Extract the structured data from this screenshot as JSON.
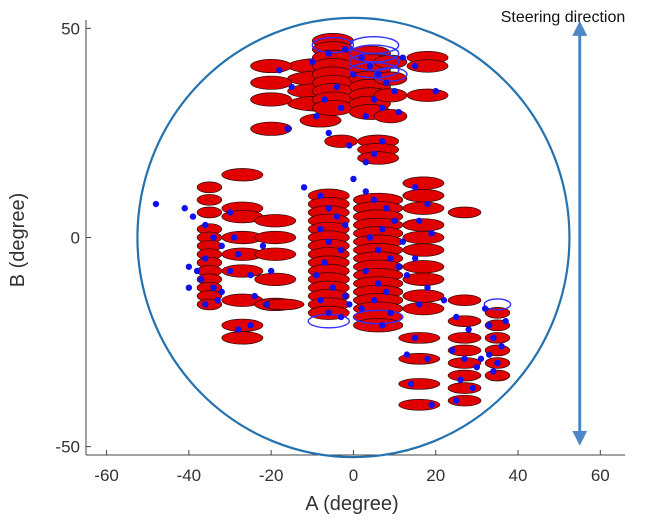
{
  "chart_data": {
    "type": "scatter",
    "title": "",
    "xlabel": "A (degree)",
    "ylabel": "B (degree)",
    "xlim": [
      -65,
      66
    ],
    "ylim": [
      -52,
      52
    ],
    "x_ticks": [
      -60,
      -40,
      -20,
      0,
      20,
      40,
      60
    ],
    "y_ticks": [
      50,
      0,
      -50
    ],
    "x_tick_labels": [
      "-60",
      "-40",
      "-20",
      "0",
      "20",
      "40",
      "60"
    ],
    "y_tick_labels": [
      "50",
      "0",
      "-50"
    ],
    "grid": false,
    "boundary_circle": {
      "center": [
        0,
        0
      ],
      "radius": 52.5
    },
    "annotation": {
      "text": "Steering direction",
      "arrow_x": 55,
      "arrow_y_range": [
        -48,
        50
      ]
    },
    "colors": {
      "fill": "#e00000",
      "outline": "#2a0a0a",
      "point": "#1010ee",
      "open_ellipse": "#3030ff",
      "boundary": "#2472b0",
      "arrow": "#4f86c6"
    },
    "filled_ellipses": [
      [
        -8,
        41,
        8,
        1.8
      ],
      [
        -8,
        38,
        8,
        1.8
      ],
      [
        -8,
        35,
        8,
        1.8
      ],
      [
        -8,
        32,
        8,
        1.8
      ],
      [
        -20,
        41,
        5,
        1.6
      ],
      [
        -20,
        37,
        5,
        1.6
      ],
      [
        -20,
        33,
        5,
        1.6
      ],
      [
        -20,
        26,
        5,
        1.6
      ],
      [
        -8,
        28,
        5,
        1.6
      ],
      [
        -5,
        47,
        5,
        1.8
      ],
      [
        -5,
        45,
        5,
        1.8
      ],
      [
        -5,
        43,
        5,
        1.8
      ],
      [
        -5,
        41,
        5,
        1.8
      ],
      [
        -5,
        39,
        5,
        1.8
      ],
      [
        -5,
        37,
        5,
        1.8
      ],
      [
        -5,
        35,
        5,
        1.8
      ],
      [
        -5,
        33,
        5,
        1.8
      ],
      [
        -5,
        31,
        5,
        1.8
      ],
      [
        4,
        44,
        5,
        1.8
      ],
      [
        4,
        42,
        5,
        1.8
      ],
      [
        4,
        40,
        5,
        1.8
      ],
      [
        4,
        38,
        5,
        1.8
      ],
      [
        4,
        36,
        5,
        1.8
      ],
      [
        4,
        34,
        5,
        1.8
      ],
      [
        4,
        32,
        5,
        1.8
      ],
      [
        4,
        30,
        5,
        1.8
      ],
      [
        9,
        42,
        4,
        1.6
      ],
      [
        9,
        38,
        4,
        1.6
      ],
      [
        9,
        34,
        4,
        1.6
      ],
      [
        9,
        29,
        4,
        1.6
      ],
      [
        18,
        43,
        5,
        1.5
      ],
      [
        18,
        41,
        5,
        1.5
      ],
      [
        18,
        34,
        5,
        1.5
      ],
      [
        -3,
        23,
        4,
        1.5
      ],
      [
        6,
        23,
        5,
        1.5
      ],
      [
        6,
        21,
        5,
        1.5
      ],
      [
        6,
        19,
        5,
        1.5
      ],
      [
        -35,
        12,
        3,
        1.3
      ],
      [
        -35,
        9,
        3,
        1.3
      ],
      [
        -35,
        6,
        3,
        1.3
      ],
      [
        -35,
        2,
        3,
        1.3
      ],
      [
        -35,
        0,
        3,
        1.3
      ],
      [
        -35,
        -2,
        3,
        1.3
      ],
      [
        -35,
        -4,
        3,
        1.3
      ],
      [
        -35,
        -6,
        3,
        1.3
      ],
      [
        -35,
        -8,
        3,
        1.3
      ],
      [
        -35,
        -10,
        3,
        1.3
      ],
      [
        -35,
        -12,
        3,
        1.3
      ],
      [
        -35,
        -14,
        3,
        1.3
      ],
      [
        -35,
        -16,
        3,
        1.3
      ],
      [
        -27,
        15,
        5,
        1.5
      ],
      [
        -27,
        7,
        5,
        1.5
      ],
      [
        -27,
        5,
        5,
        1.5
      ],
      [
        -27,
        0,
        5,
        1.5
      ],
      [
        -27,
        -4,
        5,
        1.5
      ],
      [
        -27,
        -8,
        5,
        1.5
      ],
      [
        -27,
        -15,
        5,
        1.5
      ],
      [
        -27,
        -21,
        5,
        1.5
      ],
      [
        -27,
        -24,
        5,
        1.5
      ],
      [
        -19,
        4,
        5,
        1.5
      ],
      [
        -19,
        0,
        5,
        1.5
      ],
      [
        -19,
        -4,
        5,
        1.5
      ],
      [
        -19,
        -10,
        5,
        1.5
      ],
      [
        -19,
        -16,
        5,
        1.5
      ],
      [
        -6,
        10,
        5,
        1.6
      ],
      [
        -6,
        8,
        5,
        1.6
      ],
      [
        -6,
        6,
        5,
        1.6
      ],
      [
        -6,
        4,
        5,
        1.6
      ],
      [
        -6,
        2,
        5,
        1.6
      ],
      [
        -6,
        0,
        5,
        1.6
      ],
      [
        -6,
        -2,
        5,
        1.6
      ],
      [
        -6,
        -4,
        5,
        1.6
      ],
      [
        -6,
        -6,
        5,
        1.6
      ],
      [
        -6,
        -8,
        5,
        1.6
      ],
      [
        -6,
        -10,
        5,
        1.6
      ],
      [
        -6,
        -12,
        5,
        1.6
      ],
      [
        -6,
        -14,
        5,
        1.6
      ],
      [
        -6,
        -16,
        5,
        1.6
      ],
      [
        -6,
        -18,
        5,
        1.6
      ],
      [
        6,
        9,
        6,
        1.6
      ],
      [
        6,
        7,
        6,
        1.6
      ],
      [
        6,
        5,
        6,
        1.6
      ],
      [
        6,
        3,
        6,
        1.6
      ],
      [
        6,
        1,
        6,
        1.6
      ],
      [
        6,
        -1,
        6,
        1.6
      ],
      [
        6,
        -3,
        6,
        1.6
      ],
      [
        6,
        -5,
        6,
        1.6
      ],
      [
        6,
        -7,
        6,
        1.6
      ],
      [
        6,
        -9,
        6,
        1.6
      ],
      [
        6,
        -11,
        6,
        1.6
      ],
      [
        6,
        -13,
        6,
        1.6
      ],
      [
        6,
        -15,
        6,
        1.6
      ],
      [
        6,
        -17,
        6,
        1.6
      ],
      [
        6,
        -19,
        6,
        1.6
      ],
      [
        6,
        -21,
        6,
        1.6
      ],
      [
        17,
        13,
        5,
        1.5
      ],
      [
        17,
        10,
        5,
        1.5
      ],
      [
        17,
        7,
        5,
        1.5
      ],
      [
        17,
        3,
        5,
        1.5
      ],
      [
        17,
        0,
        5,
        1.5
      ],
      [
        17,
        -3,
        5,
        1.5
      ],
      [
        17,
        -7,
        5,
        1.5
      ],
      [
        17,
        -10,
        5,
        1.5
      ],
      [
        17,
        -14,
        5,
        1.5
      ],
      [
        17,
        -17,
        5,
        1.5
      ],
      [
        27,
        6,
        4,
        1.3
      ],
      [
        27,
        -15,
        4,
        1.3
      ],
      [
        27,
        -20,
        4,
        1.3
      ],
      [
        27,
        -24,
        4,
        1.3
      ],
      [
        27,
        -27,
        4,
        1.3
      ],
      [
        27,
        -30,
        4,
        1.3
      ],
      [
        27,
        -33,
        4,
        1.3
      ],
      [
        27,
        -36,
        4,
        1.3
      ],
      [
        27,
        -39,
        4,
        1.3
      ],
      [
        35,
        -18,
        3,
        1.3
      ],
      [
        35,
        -21,
        3,
        1.3
      ],
      [
        35,
        -24,
        3,
        1.3
      ],
      [
        35,
        -27,
        3,
        1.3
      ],
      [
        35,
        -30,
        3,
        1.3
      ],
      [
        35,
        -33,
        3,
        1.3
      ],
      [
        16,
        -24,
        5,
        1.3
      ],
      [
        16,
        -29,
        5,
        1.3
      ],
      [
        16,
        -35,
        5,
        1.3
      ],
      [
        16,
        -40,
        5,
        1.3
      ],
      [
        -17,
        -16,
        5,
        1.3
      ]
    ],
    "open_ellipses": [
      [
        -5,
        46,
        5,
        1.8
      ],
      [
        5,
        46,
        6,
        2
      ],
      [
        5,
        44,
        6,
        2
      ],
      [
        5,
        42,
        6,
        2
      ],
      [
        5,
        40,
        6,
        1.8
      ],
      [
        9,
        39,
        4,
        1.6
      ],
      [
        -6,
        -20,
        5,
        1.6
      ],
      [
        6,
        -19,
        6,
        1.6
      ],
      [
        35,
        -16,
        3.2,
        1.3
      ]
    ],
    "points": [
      [
        -48,
        8
      ],
      [
        -41,
        7
      ],
      [
        -39,
        5
      ],
      [
        -36,
        3
      ],
      [
        -34,
        0
      ],
      [
        -32,
        -2
      ],
      [
        -36,
        -5
      ],
      [
        -38,
        -8
      ],
      [
        -40,
        -7
      ],
      [
        -37,
        -10
      ],
      [
        -34,
        -12
      ],
      [
        -32,
        -13
      ],
      [
        -33,
        -15
      ],
      [
        -36,
        -16
      ],
      [
        -40,
        -12
      ],
      [
        -30,
        6
      ],
      [
        -29,
        0
      ],
      [
        -28,
        -4
      ],
      [
        -30,
        -8
      ],
      [
        -25,
        -9
      ],
      [
        -24,
        -14
      ],
      [
        -28,
        -22
      ],
      [
        -25,
        -21
      ],
      [
        -22,
        -2
      ],
      [
        -20,
        -8
      ],
      [
        -21,
        -16
      ],
      [
        -12,
        12
      ],
      [
        -8,
        10
      ],
      [
        -6,
        7
      ],
      [
        -4,
        5
      ],
      [
        -2,
        3
      ],
      [
        -8,
        2
      ],
      [
        -6,
        -1
      ],
      [
        -3,
        -3
      ],
      [
        -7,
        -6
      ],
      [
        -9,
        -9
      ],
      [
        -5,
        -12
      ],
      [
        -2,
        -14
      ],
      [
        -8,
        -15
      ],
      [
        -6,
        -18
      ],
      [
        -3,
        -19
      ],
      [
        -1,
        -16
      ],
      [
        0,
        14
      ],
      [
        3,
        11
      ],
      [
        5,
        9
      ],
      [
        8,
        7
      ],
      [
        10,
        4
      ],
      [
        7,
        2
      ],
      [
        4,
        0
      ],
      [
        6,
        -3
      ],
      [
        9,
        -5
      ],
      [
        11,
        -7
      ],
      [
        3,
        -8
      ],
      [
        6,
        -11
      ],
      [
        8,
        -13
      ],
      [
        5,
        -15
      ],
      [
        2,
        -17
      ],
      [
        9,
        -18
      ],
      [
        7,
        -21
      ],
      [
        12,
        -1
      ],
      [
        13,
        -9
      ],
      [
        15,
        12
      ],
      [
        18,
        8
      ],
      [
        16,
        4
      ],
      [
        19,
        1
      ],
      [
        15,
        -5
      ],
      [
        18,
        -12
      ],
      [
        16,
        -16
      ],
      [
        -18,
        40
      ],
      [
        -15,
        36
      ],
      [
        -10,
        42
      ],
      [
        -6,
        44
      ],
      [
        -2,
        45
      ],
      [
        0,
        39
      ],
      [
        -4,
        36
      ],
      [
        -7,
        33
      ],
      [
        -3,
        31
      ],
      [
        2,
        43
      ],
      [
        4,
        41
      ],
      [
        6,
        39
      ],
      [
        8,
        37
      ],
      [
        10,
        35
      ],
      [
        5,
        33
      ],
      [
        7,
        31
      ],
      [
        3,
        29
      ],
      [
        -9,
        29
      ],
      [
        -6,
        25
      ],
      [
        -16,
        26
      ],
      [
        -1,
        22
      ],
      [
        5,
        20
      ],
      [
        12,
        43
      ],
      [
        15,
        41
      ],
      [
        20,
        35
      ],
      [
        7,
        23
      ],
      [
        3,
        18
      ],
      [
        11,
        30
      ],
      [
        22,
        -15
      ],
      [
        25,
        -19
      ],
      [
        28,
        -22
      ],
      [
        24,
        -27
      ],
      [
        27,
        -29
      ],
      [
        30,
        -31
      ],
      [
        26,
        -34
      ],
      [
        29,
        -36
      ],
      [
        25,
        -39
      ],
      [
        32,
        -17
      ],
      [
        33,
        -21
      ],
      [
        34,
        -24
      ],
      [
        36,
        -26
      ],
      [
        33,
        -28
      ],
      [
        35,
        -30
      ],
      [
        34,
        -32
      ],
      [
        31,
        -29
      ],
      [
        37,
        -20
      ],
      [
        13,
        -28
      ],
      [
        18,
        -29
      ],
      [
        14,
        -35
      ],
      [
        19,
        -40
      ],
      [
        15,
        -24
      ]
    ]
  }
}
